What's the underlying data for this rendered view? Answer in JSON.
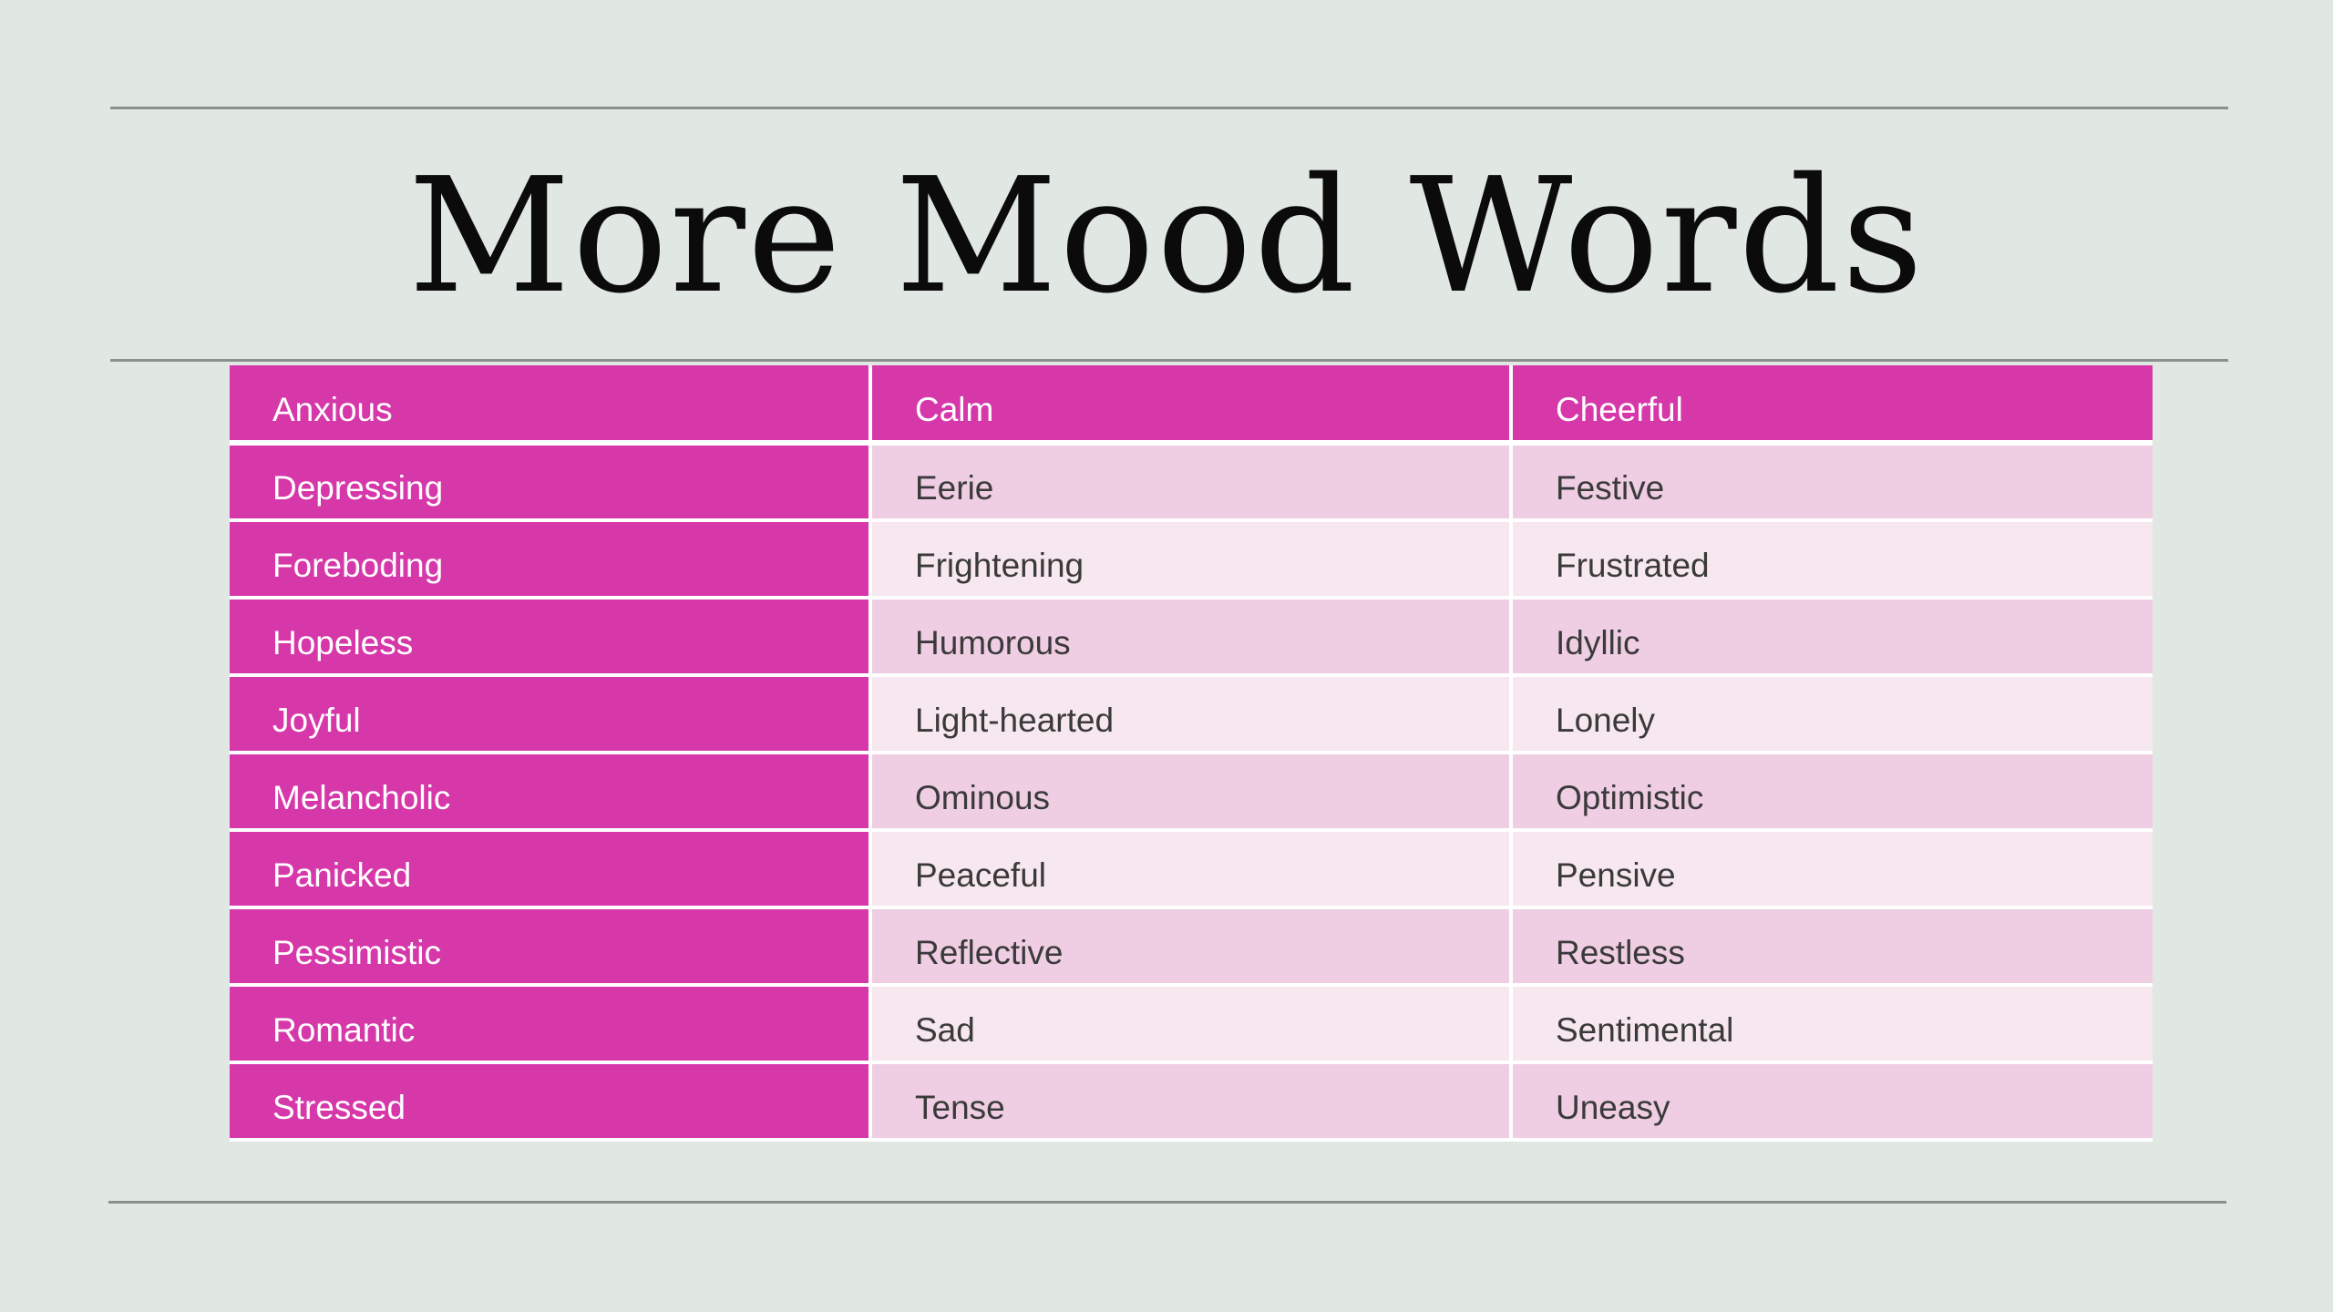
{
  "slide": {
    "title": "More Mood Words"
  },
  "table": {
    "header": [
      "Anxious",
      "Calm",
      "Cheerful"
    ],
    "rows": [
      [
        "Depressing",
        "Eerie",
        "Festive"
      ],
      [
        "Foreboding",
        "Frightening",
        "Frustrated"
      ],
      [
        "Hopeless",
        "Humorous",
        "Idyllic"
      ],
      [
        "Joyful",
        "Light-hearted",
        "Lonely"
      ],
      [
        "Melancholic",
        "Ominous",
        "Optimistic"
      ],
      [
        "Panicked",
        "Peaceful",
        "Pensive"
      ],
      [
        "Pessimistic",
        "Reflective",
        "Restless"
      ],
      [
        "Romantic",
        "Sad",
        "Sentimental"
      ],
      [
        "Stressed",
        "Tense",
        "Uneasy"
      ]
    ]
  },
  "colors": {
    "background": "#e1e7e3",
    "accent": "#d638aa",
    "row_band_dark": "#efcde3",
    "row_band_light": "#f7e7ef",
    "rule": "#8c908d"
  }
}
